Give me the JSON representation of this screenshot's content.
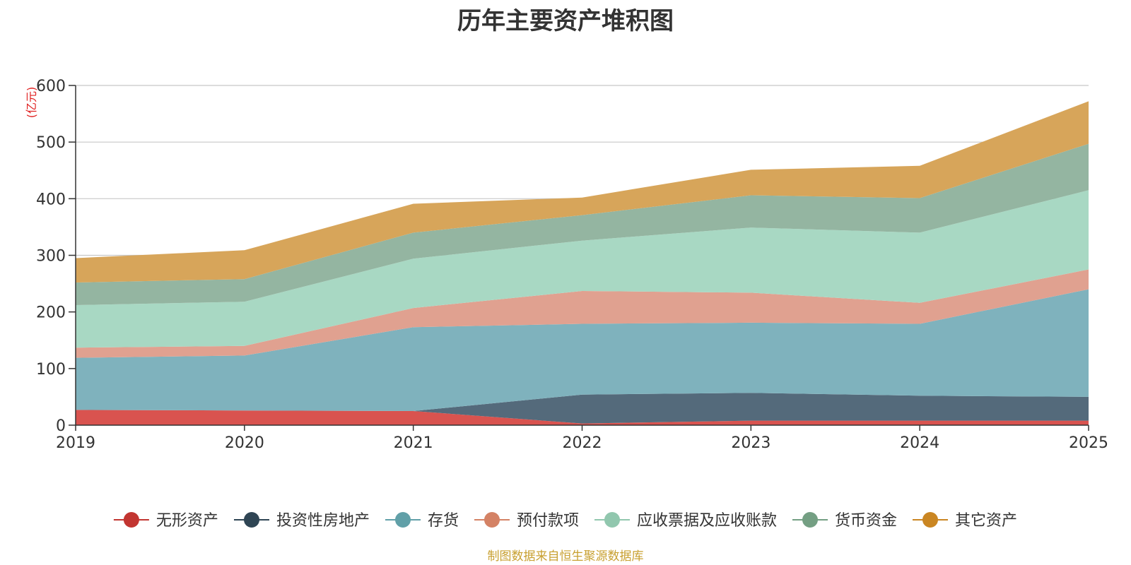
{
  "chart_data": {
    "type": "area",
    "stacked": true,
    "title": "历年主要资产堆积图",
    "unit": "(亿元)",
    "xlabel": "",
    "ylabel": "(亿元)",
    "x": [
      "2019",
      "2020",
      "2021",
      "2022",
      "2023",
      "2024",
      "2025"
    ],
    "ylim": [
      0,
      600
    ],
    "yticks": [
      0,
      100,
      200,
      300,
      400,
      500,
      600
    ],
    "grid": true,
    "legend_position": "bottom",
    "series": [
      {
        "name": "无形资产",
        "color": "#d9534f",
        "marker": "#c23531",
        "values": [
          27,
          26,
          25,
          3,
          8,
          8,
          8
        ]
      },
      {
        "name": "投资性房地产",
        "color": "#546a7b",
        "marker": "#2f4554",
        "values": [
          0,
          0,
          0,
          51,
          49,
          44,
          42
        ]
      },
      {
        "name": "存货",
        "color": "#7fb2bd",
        "marker": "#61a0a8",
        "values": [
          92,
          97,
          148,
          125,
          124,
          127,
          190
        ]
      },
      {
        "name": "预付款项",
        "color": "#e0a190",
        "marker": "#d48265",
        "values": [
          18,
          17,
          34,
          58,
          53,
          37,
          35
        ]
      },
      {
        "name": "应收票据及应收账款",
        "color": "#a8d8c3",
        "marker": "#91c7ae",
        "values": [
          75,
          78,
          87,
          89,
          115,
          124,
          140
        ]
      },
      {
        "name": "货币资金",
        "color": "#94b5a1",
        "marker": "#749f83",
        "values": [
          40,
          40,
          46,
          45,
          57,
          61,
          82
        ]
      },
      {
        "name": "其它资产",
        "color": "#d7a55a",
        "marker": "#ca8622",
        "values": [
          43,
          51,
          51,
          31,
          45,
          57,
          75
        ]
      }
    ],
    "source_note": "制图数据来自恒生聚源数据库"
  }
}
